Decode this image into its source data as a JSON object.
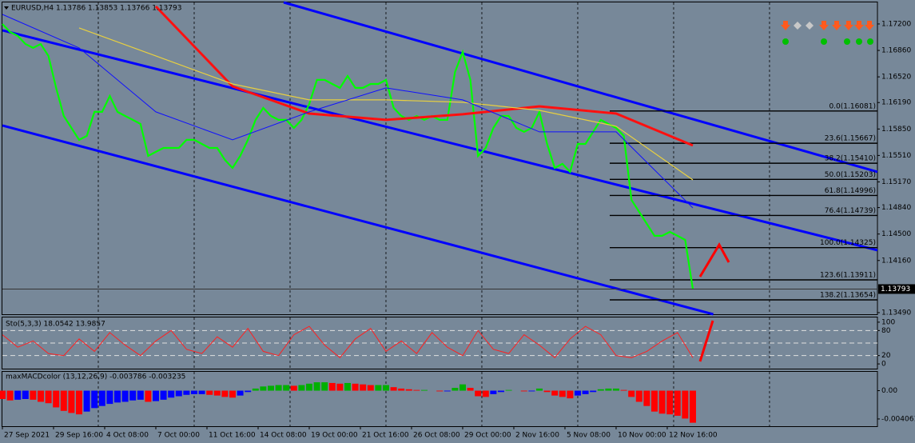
{
  "chart_data": [
    {
      "type": "line",
      "title": "EURUSD,H4  1.13786 1.13853 1.13766 1.13793",
      "xlim": [
        0,
        171.1
      ],
      "ylim": [
        1.13469,
        1.17477
      ],
      "xticks": [
        {
          "value": 0,
          "label": "27 Sep 2021"
        },
        {
          "value": 10,
          "label": "29 Sep 16:00"
        },
        {
          "value": 20,
          "label": "4 Oct 08:00"
        },
        {
          "value": 30,
          "label": "7 Oct 00:00"
        },
        {
          "value": 40,
          "label": "11 Oct 16:00"
        },
        {
          "value": 50,
          "label": "14 Oct 08:00"
        },
        {
          "value": 60,
          "label": "19 Oct 00:00"
        },
        {
          "value": 70,
          "label": "21 Oct 16:00"
        },
        {
          "value": 80,
          "label": "26 Oct 08:00"
        },
        {
          "value": 90,
          "label": "29 Oct 00:00"
        },
        {
          "value": 100,
          "label": "2 Nov 16:00"
        },
        {
          "value": 110,
          "label": "5 Nov 08:00"
        },
        {
          "value": 120,
          "label": "10 Nov 00:00"
        },
        {
          "value": 130,
          "label": "12 Nov 16:00"
        }
      ],
      "xgrid": [
        18.75,
        37.5,
        56.25,
        75,
        93.75,
        112.5,
        131.25,
        150
      ],
      "yticks": [
        {
          "value": 1.172,
          "label": "1.17200"
        },
        {
          "value": 1.1686,
          "label": "1.16860"
        },
        {
          "value": 1.1652,
          "label": "1.16520"
        },
        {
          "value": 1.1619,
          "label": "1.16190"
        },
        {
          "value": 1.1585,
          "label": "1.15850"
        },
        {
          "value": 1.1551,
          "label": "1.15510"
        },
        {
          "value": 1.1517,
          "label": "1.15170"
        },
        {
          "value": 1.1484,
          "label": "1.14840"
        },
        {
          "value": 1.145,
          "label": "1.14500"
        },
        {
          "value": 1.1416,
          "label": "1.14160"
        },
        {
          "value": 1.1349,
          "label": "1.13490"
        }
      ],
      "series": [
        {
          "color": "#00ff00",
          "width": 2.2,
          "x": [
            0,
            1.5,
            3,
            4.5,
            6,
            7.5,
            9,
            10.5,
            12,
            13.5,
            15,
            16.5,
            18,
            19.5,
            21,
            22.5,
            24,
            25.5,
            27,
            28.5,
            30,
            31.5,
            33,
            34.5,
            36,
            37.5,
            39,
            40.5,
            42,
            43.5,
            45,
            46.5,
            48,
            49.5,
            51,
            52.5,
            54,
            55.5,
            57,
            58.5,
            60,
            61.5,
            63,
            64.5,
            66,
            67.5,
            69,
            70.5,
            72,
            73.5,
            75,
            76.5,
            78,
            79.5,
            81,
            82.5,
            84,
            85.5,
            87,
            88.5,
            90,
            91.5,
            93,
            94.5,
            96,
            97.5,
            99,
            100.5,
            102,
            103.5,
            105,
            106.5,
            108,
            109.5,
            111,
            112.5,
            114,
            115.5,
            117,
            118.5,
            120,
            121.5,
            123,
            124.5,
            126,
            127.5,
            129,
            130.5,
            132,
            133.5,
            135
          ],
          "values": [
            1.172,
            1.17097,
            1.17046,
            1.16943,
            1.16892,
            1.16943,
            1.16789,
            1.16378,
            1.16018,
            1.15864,
            1.1571,
            1.15761,
            1.1607,
            1.1607,
            1.16275,
            1.1607,
            1.16018,
            1.15967,
            1.15915,
            1.15504,
            1.15556,
            1.15607,
            1.15607,
            1.15607,
            1.1571,
            1.1571,
            1.15658,
            1.15607,
            1.15607,
            1.15453,
            1.1535,
            1.15504,
            1.1571,
            1.15967,
            1.16121,
            1.16018,
            1.15967,
            1.15967,
            1.15864,
            1.15967,
            1.16172,
            1.16481,
            1.16481,
            1.16429,
            1.16378,
            1.16532,
            1.16378,
            1.16378,
            1.16429,
            1.16429,
            1.16481,
            1.16121,
            1.16018,
            1.15967,
            1.16018,
            1.15967,
            1.16018,
            1.15967,
            1.15967,
            1.16583,
            1.1684,
            1.16481,
            1.15504,
            1.15607,
            1.15864,
            1.16018,
            1.16018,
            1.15864,
            1.15813,
            1.15864,
            1.1607,
            1.15658,
            1.1535,
            1.15402,
            1.15299,
            1.15658,
            1.15658,
            1.15813,
            1.15967,
            1.15915,
            1.15864,
            1.15761,
            1.14939,
            1.14785,
            1.14631,
            1.14477,
            1.14477,
            1.14528,
            1.14477,
            1.14425,
            1.13793
          ]
        },
        {
          "color": "#ff1010",
          "width": 3,
          "x": [
            30,
            45,
            60,
            75,
            90,
            105,
            120,
            135
          ],
          "values": [
            1.17426,
            1.16398,
            1.16049,
            1.15967,
            1.16039,
            1.16141,
            1.16049,
            1.15638
          ]
        },
        {
          "color": "#e8d040",
          "width": 1.2,
          "x": [
            15,
            30,
            45,
            60,
            75,
            90,
            105,
            120,
            135
          ],
          "values": [
            1.17149,
            1.16789,
            1.16429,
            1.16224,
            1.16224,
            1.16193,
            1.1609,
            1.15885,
            1.15196
          ]
        },
        {
          "color": "#1010ff",
          "width": 1,
          "x": [
            0,
            15,
            30,
            45,
            60,
            75,
            90,
            105,
            120,
            135
          ],
          "values": [
            1.17323,
            1.16892,
            1.1607,
            1.1571,
            1.1607,
            1.16378,
            1.16224,
            1.15813,
            1.15813,
            1.14836
          ]
        }
      ],
      "trendlines": {
        "color": "#0000ff",
        "width": 3,
        "lines": [
          {
            "x": [
              55,
              171.1
            ],
            "values": [
              1.17477,
              1.15299
            ]
          },
          {
            "x": [
              0,
              171.1
            ],
            "values": [
              1.17118,
              1.14292
            ]
          },
          {
            "x": [
              0,
              139
            ],
            "values": [
              1.15895,
              1.13469
            ]
          }
        ]
      },
      "fibo": {
        "x": [
          118.75,
          171.1
        ],
        "levels": [
          {
            "value": 1.16081,
            "label": "0.0(1.16081)"
          },
          {
            "value": 1.15667,
            "label": "23.6(1.15667)"
          },
          {
            "value": 1.1541,
            "label": "38.2(1.15410)"
          },
          {
            "value": 1.15203,
            "label": "50.0(1.15203)"
          },
          {
            "value": 1.14996,
            "label": "61.8(1.14996)"
          },
          {
            "value": 1.14739,
            "label": "76.4(1.14739)"
          },
          {
            "value": 1.14325,
            "label": "100.0(1.14325)"
          },
          {
            "value": 1.13911,
            "label": "123.6(1.13911)"
          },
          {
            "value": 1.13654,
            "label": "138.2(1.13654)"
          }
        ]
      },
      "last_price": 1.13793
    },
    {
      "type": "line",
      "title": "Sto(5,3,3) 18.0542 13.9857",
      "xlim": [
        0,
        171.1
      ],
      "ylim": [
        -11.3,
        111.3
      ],
      "yticks": [
        0,
        20,
        80,
        100
      ],
      "levels": [
        20,
        50,
        80
      ],
      "series": [
        {
          "color": "#ff2020",
          "width": 1,
          "x": [
            0,
            3,
            6,
            9,
            12,
            15,
            18,
            21,
            24,
            27,
            30,
            33,
            36,
            39,
            42,
            45,
            48,
            51,
            54,
            57,
            60,
            63,
            66,
            69,
            72,
            75,
            78,
            81,
            84,
            87,
            90,
            93,
            96,
            99,
            102,
            105,
            108,
            111,
            114,
            117,
            120,
            123,
            126,
            129,
            132,
            135
          ],
          "values": [
            70,
            40,
            55,
            25,
            20,
            60,
            30,
            75,
            45,
            20,
            55,
            80,
            35,
            25,
            65,
            40,
            85,
            30,
            20,
            70,
            90,
            45,
            15,
            60,
            85,
            30,
            55,
            25,
            75,
            40,
            20,
            80,
            35,
            25,
            70,
            45,
            15,
            60,
            90,
            70,
            20,
            15,
            30,
            55,
            75,
            15
          ]
        }
      ]
    },
    {
      "type": "bar",
      "title": "maxMACDcolor (13,12,26,9) -0.003786 -0.003235",
      "xlim": [
        0,
        171.1
      ],
      "ylim": [
        -0.0051,
        0.0027
      ],
      "yticks": [
        {
          "value": 0,
          "label": "0.00"
        },
        -0.004061
      ],
      "palette": [
        "#ff0000",
        "#00b000",
        "#0000ff"
      ],
      "x": [
        0,
        1.5,
        3,
        4.5,
        6,
        7.5,
        9,
        10.5,
        12,
        13.5,
        15,
        16.5,
        18,
        19.5,
        21,
        22.5,
        24,
        25.5,
        27,
        28.5,
        30,
        31.5,
        33,
        34.5,
        36,
        37.5,
        39,
        40.5,
        42,
        43.5,
        45,
        46.5,
        48,
        49.5,
        51,
        52.5,
        54,
        55.5,
        57,
        58.5,
        60,
        61.5,
        63,
        64.5,
        66,
        67.5,
        69,
        70.5,
        72,
        73.5,
        75,
        76.5,
        78,
        79.5,
        81,
        82.5,
        84,
        85.5,
        87,
        88.5,
        90,
        91.5,
        93,
        94.5,
        96,
        97.5,
        99,
        100.5,
        102,
        103.5,
        105,
        106.5,
        108,
        109.5,
        111,
        112.5,
        114,
        115.5,
        117,
        118.5,
        120,
        121.5,
        123,
        124.5,
        126,
        127.5,
        129,
        130.5,
        132,
        133.5,
        135
      ],
      "values": [
        -0.0012,
        -0.0014,
        -0.0013,
        -0.0012,
        -0.0013,
        -0.0016,
        -0.0018,
        -0.0024,
        -0.0029,
        -0.0032,
        -0.0034,
        -0.003,
        -0.0025,
        -0.0022,
        -0.0019,
        -0.0017,
        -0.0016,
        -0.0014,
        -0.0013,
        -0.0016,
        -0.0015,
        -0.0013,
        -0.001,
        -0.0008,
        -0.0006,
        -0.0005,
        -0.0005,
        -0.0006,
        -0.0007,
        -0.0009,
        -0.001,
        -0.0007,
        -0.0002,
        0.0003,
        0.0006,
        0.0007,
        0.0008,
        0.0008,
        0.0007,
        0.0008,
        0.001,
        0.0012,
        0.0012,
        0.0011,
        0.001,
        0.0011,
        0.001,
        0.0009,
        0.0008,
        0.0008,
        0.0008,
        0.0005,
        0.0003,
        0.0002,
        0.0001,
        0.0001,
        0,
        -0.0001,
        -0.0001,
        0.0004,
        0.0009,
        0.0004,
        -0.0008,
        -0.0009,
        -0.0005,
        -0.0002,
        0.0001,
        0,
        -0.0001,
        -0.0001,
        0.0003,
        -0.0002,
        -0.0007,
        -0.0009,
        -0.0011,
        -0.0007,
        -0.0005,
        -0.0002,
        0.0002,
        0.0003,
        0.0003,
        0.0001,
        -0.0009,
        -0.0016,
        -0.0022,
        -0.003,
        -0.0033,
        -0.0034,
        -0.0036,
        -0.004,
        -0.0046
      ],
      "color_index": [
        0,
        0,
        2,
        2,
        0,
        0,
        0,
        0,
        0,
        0,
        0,
        2,
        2,
        2,
        2,
        2,
        2,
        2,
        2,
        0,
        2,
        2,
        2,
        2,
        2,
        2,
        2,
        0,
        0,
        0,
        0,
        2,
        2,
        1,
        1,
        1,
        1,
        1,
        0,
        1,
        1,
        1,
        1,
        0,
        0,
        1,
        0,
        0,
        0,
        1,
        1,
        0,
        0,
        0,
        0,
        1,
        0,
        0,
        2,
        1,
        1,
        0,
        0,
        0,
        2,
        2,
        1,
        0,
        0,
        2,
        1,
        0,
        0,
        0,
        0,
        2,
        2,
        2,
        1,
        1,
        1,
        0,
        0,
        0,
        0,
        0,
        0,
        0,
        0,
        0,
        0
      ]
    }
  ]
}
